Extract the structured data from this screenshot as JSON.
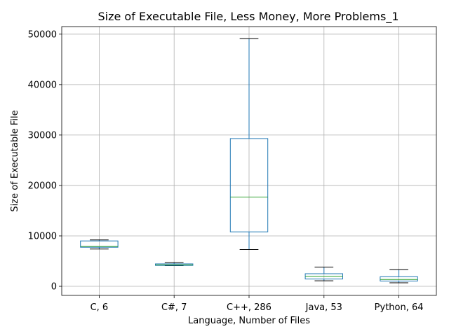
{
  "chart_data": {
    "type": "box",
    "title": "Size of Executable File, Less Money, More Problems_1",
    "xlabel": "Language, Number of Files",
    "ylabel": "Size of Executable File",
    "ylim": [
      -1800,
      51500
    ],
    "yticks": [
      0,
      10000,
      20000,
      30000,
      40000,
      50000
    ],
    "ytick_labels": [
      "0",
      "10000",
      "20000",
      "30000",
      "40000",
      "50000"
    ],
    "grid": true,
    "categories": [
      "C, 6",
      "C#, 7",
      "C++, 286",
      "Java, 53",
      "Python, 64"
    ],
    "boxes": [
      {
        "whislo": 7400,
        "q1": 7750,
        "med": 7900,
        "q3": 9000,
        "whishi": 9200
      },
      {
        "whislo": 4100,
        "q1": 4150,
        "med": 4250,
        "q3": 4450,
        "whishi": 4700
      },
      {
        "whislo": 7300,
        "q1": 10800,
        "med": 17700,
        "q3": 29300,
        "whishi": 49100
      },
      {
        "whislo": 1100,
        "q1": 1450,
        "med": 2000,
        "q3": 2500,
        "whishi": 3800
      },
      {
        "whislo": 700,
        "q1": 1050,
        "med": 1350,
        "q3": 1900,
        "whishi": 3300
      }
    ],
    "colors": {
      "box": "#1f77b4",
      "median": "#2ca02c",
      "cap": "#000000",
      "grid": "#b0b0b0"
    }
  }
}
